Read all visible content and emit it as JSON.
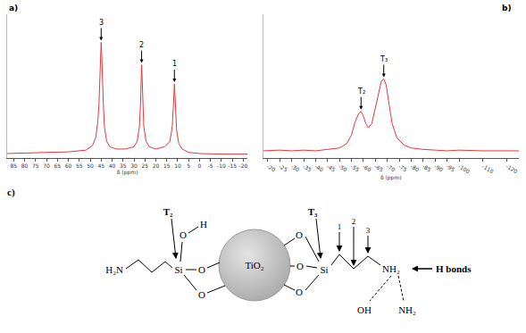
{
  "chart_data": [
    {
      "type": "line",
      "label": "a)",
      "x_label": "δ (ppm)",
      "color": "#e2383d",
      "x": [
        88,
        80,
        70,
        60,
        52,
        49,
        47.5,
        46.5,
        46,
        45.5,
        45.2,
        45,
        44.8,
        44.5,
        44,
        43.5,
        42.5,
        41,
        38,
        34,
        30,
        28.5,
        27.5,
        27,
        26.7,
        26.5,
        26.3,
        26,
        25.5,
        24.5,
        23,
        20,
        16,
        13.5,
        12.5,
        12,
        11.7,
        11.5,
        11.3,
        11,
        10.5,
        9.5,
        8,
        5,
        0,
        -10,
        -22
      ],
      "values": [
        1,
        1.5,
        2,
        2.5,
        4,
        8,
        15,
        30,
        45,
        70,
        90,
        100,
        92,
        70,
        45,
        25,
        12,
        7,
        5,
        5,
        7,
        12,
        25,
        45,
        68,
        80,
        70,
        45,
        25,
        12,
        7,
        5,
        7,
        12,
        25,
        42,
        58,
        63,
        56,
        40,
        22,
        10,
        5,
        2,
        1,
        0.5,
        0.5
      ],
      "peaks": [
        {
          "x": 45,
          "y": 100,
          "label": "3"
        },
        {
          "x": 26.5,
          "y": 80,
          "label": "2"
        },
        {
          "x": 11.5,
          "y": 63,
          "label": "1"
        }
      ],
      "xlim": [
        88,
        -22
      ],
      "xticks": [
        85,
        80,
        75,
        70,
        65,
        60,
        55,
        50,
        45,
        40,
        35,
        30,
        25,
        20,
        15,
        10,
        5,
        0,
        -5,
        -10,
        -15,
        -20
      ],
      "ylim": [
        -3,
        125
      ],
      "grid": false,
      "tick_labels": "x"
    },
    {
      "type": "line",
      "label": "b)",
      "x_label": "δ (ppm)",
      "color": "#e2383d",
      "x": [
        -18,
        -25,
        -30,
        -35,
        -40,
        -45,
        -50,
        -53,
        -55,
        -56.5,
        -58,
        -59,
        -60,
        -61,
        -62,
        -63.5,
        -65,
        -66.5,
        -67.5,
        -68.5,
        -69.5,
        -70.5,
        -72,
        -74,
        -77,
        -80,
        -85,
        -90,
        -95,
        -100,
        -110,
        -125
      ],
      "values": [
        0,
        1,
        0,
        1,
        0,
        2,
        4,
        10,
        22,
        40,
        52,
        55,
        48,
        38,
        32,
        38,
        60,
        86,
        97,
        100,
        92,
        70,
        38,
        18,
        8,
        4,
        2,
        1,
        0,
        1,
        0,
        0
      ],
      "peaks": [
        {
          "x": -59,
          "y": 55,
          "label": "T₂"
        },
        {
          "x": -68.5,
          "y": 100,
          "label": "T₃"
        }
      ],
      "xlim": [
        -18,
        -125
      ],
      "xticks": [
        -20,
        -25,
        -30,
        -35,
        -40,
        -45,
        -50,
        -55,
        -60,
        -65,
        -70,
        -75,
        -80,
        -85,
        -90,
        -95,
        -100,
        -110,
        -120
      ],
      "ylim": [
        -10,
        190
      ],
      "grid": false,
      "tick_labels": "x"
    }
  ],
  "diagram": {
    "label": "c)",
    "particle": "TiO₂",
    "left": {
      "site": "T₂",
      "amine": "H₂N",
      "si": "Si",
      "oxygens": [
        "O",
        "O"
      ],
      "hydroxyl": [
        "O",
        "H"
      ]
    },
    "right": {
      "site": "T₃",
      "si": "Si",
      "oxygens": [
        "O",
        "O",
        "O"
      ],
      "carbons": [
        "1",
        "2",
        "3"
      ],
      "amine": "NH₂",
      "h_bonds": "H bonds",
      "partners": [
        "OH",
        "NH₂"
      ]
    }
  }
}
